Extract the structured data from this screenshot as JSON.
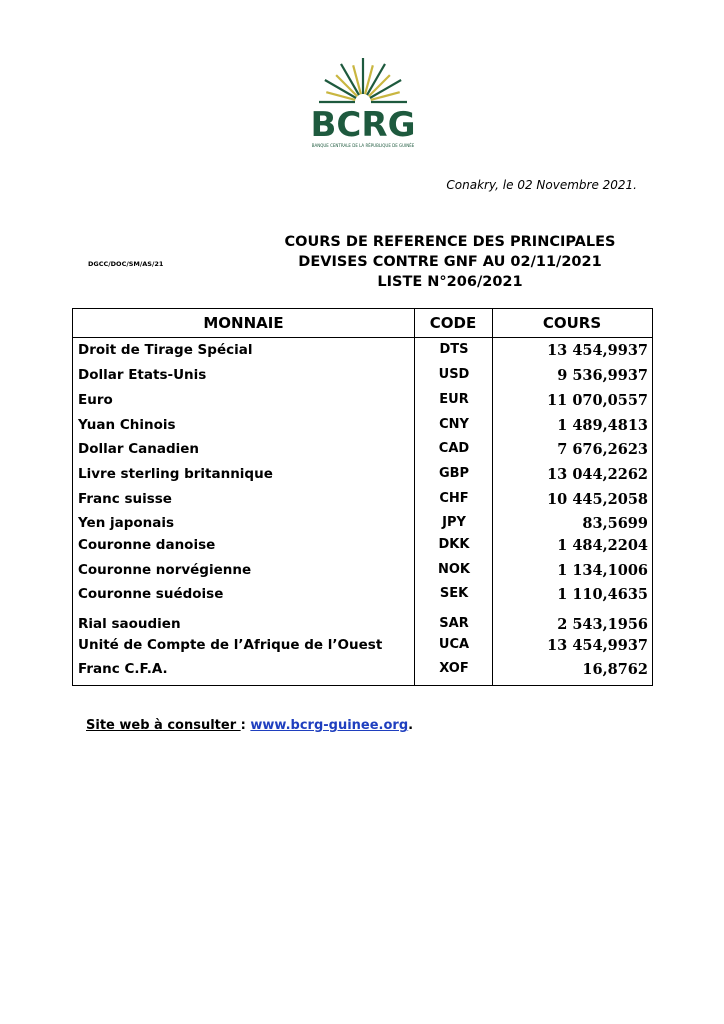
{
  "logo": {
    "text": "BCRG",
    "subtitle": "BANQUE CENTRALE DE LA RÉPUBLIQUE DE GUINÉE",
    "colors": {
      "green": "#1e5a3e",
      "gold": "#c9b640"
    }
  },
  "date_line": "Conakry, le 02 Novembre 2021.",
  "reference": "DGCC/DOC/SM/AS/21",
  "title": [
    "COURS DE REFERENCE DES PRINCIPALES",
    "DEVISES CONTRE GNF AU 02/11/2021",
    "LISTE N°206/2021"
  ],
  "table": {
    "headers": [
      "MONNAIE",
      "CODE",
      "COURS"
    ],
    "rows": [
      {
        "name": "Droit de Tirage Spécial",
        "code": "DTS",
        "rate": "13 454,9937"
      },
      {
        "name": "Dollar Etats-Unis",
        "code": "USD",
        "rate": "9 536,9937"
      },
      {
        "name": "Euro",
        "code": "EUR",
        "rate": "11 070,0557"
      },
      {
        "name": "Yuan Chinois",
        "code": "CNY",
        "rate": "1 489,4813"
      },
      {
        "name": "Dollar Canadien",
        "code": "CAD",
        "rate": "7 676,2623"
      },
      {
        "name": "Livre sterling britannique",
        "code": "GBP",
        "rate": "13 044,2262"
      },
      {
        "name": "Franc suisse",
        "code": "CHF",
        "rate": "10 445,2058"
      },
      {
        "name": "Yen japonais",
        "code": "JPY",
        "rate": "83,5699"
      },
      {
        "name": "Couronne danoise",
        "code": "DKK",
        "rate": "1 484,2204"
      },
      {
        "name": "Couronne norvégienne",
        "code": "NOK",
        "rate": "1 134,1006"
      },
      {
        "name": "Couronne suédoise",
        "code": "SEK",
        "rate": "1 110,4635"
      },
      {
        "name": "Rial saoudien",
        "code": "SAR",
        "rate": "2 543,1956"
      },
      {
        "name": "Unité de Compte de l’Afrique de l’Ouest",
        "code": "UCA",
        "rate": "13 454,9937"
      },
      {
        "name": "Franc C.F.A.",
        "code": "XOF",
        "rate": "16,8762"
      }
    ]
  },
  "footer": {
    "label": "Site web à consulter ",
    "sep": ": ",
    "link": "www.bcrg-guinee.org",
    "end": "."
  }
}
